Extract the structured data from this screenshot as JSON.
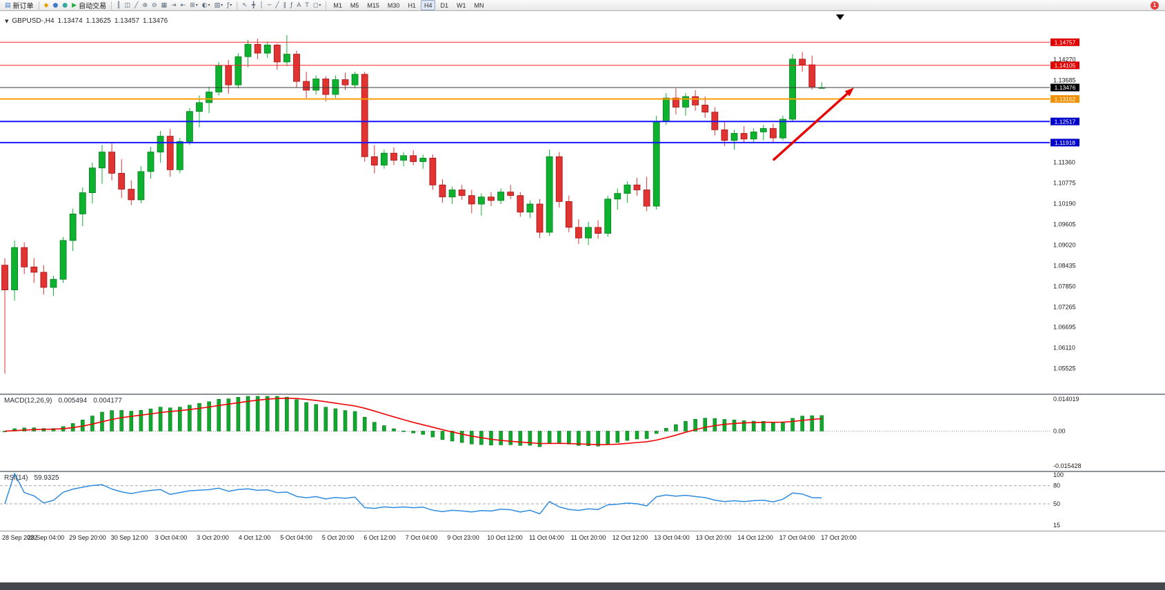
{
  "toolbar": {
    "new_order_button": {
      "name": "new-order-button",
      "glyph": "▤",
      "glyph_color": "#3f77c9",
      "label": "新订单"
    },
    "system_icons": [
      {
        "name": "alerts-icon",
        "glyph": "◆",
        "color": "#e0a400"
      },
      {
        "name": "community-icon",
        "glyph": "●",
        "color": "#3f77c9"
      },
      {
        "name": "market-icon",
        "glyph": "●",
        "color": "#2fa8a0"
      }
    ],
    "autotrade_button": {
      "name": "autotrade-button",
      "glyph": "▶",
      "glyph_color": "#1fae3d",
      "label": "自动交易"
    },
    "chart_buttons": [
      {
        "name": "bar-chart-icon",
        "glyph": "║"
      },
      {
        "name": "candlestick-chart-icon",
        "glyph": "◫"
      },
      {
        "name": "line-chart-icon",
        "glyph": "╱"
      },
      {
        "name": "zoom-in-icon",
        "glyph": "⊕"
      },
      {
        "name": "zoom-out-icon",
        "glyph": "⊖"
      },
      {
        "name": "tile-windows-icon",
        "glyph": "▦"
      },
      {
        "name": "auto-scroll-icon",
        "glyph": "⇥"
      },
      {
        "name": "chart-shift-icon",
        "glyph": "⇤"
      },
      {
        "name": "new-chart-icon",
        "glyph": "⊞",
        "dropdown": true
      },
      {
        "name": "periods-icon",
        "glyph": "◐",
        "dropdown": true
      },
      {
        "name": "templates-icon",
        "glyph": "▧",
        "dropdown": true
      },
      {
        "name": "indicators-icon",
        "glyph": "ƒ",
        "dropdown": true
      }
    ],
    "drawing_buttons": [
      {
        "name": "cursor-icon",
        "glyph": "↖"
      },
      {
        "name": "crosshair-icon",
        "glyph": "╋"
      },
      {
        "name": "vertical-line-icon",
        "glyph": "│"
      },
      {
        "name": "horizontal-line-icon",
        "glyph": "─"
      },
      {
        "name": "trendline-icon",
        "glyph": "╱"
      },
      {
        "name": "channel-icon",
        "glyph": "∥"
      },
      {
        "name": "fibonacci-icon",
        "glyph": "ƒ"
      },
      {
        "name": "text-icon",
        "glyph": "A"
      },
      {
        "name": "label-icon",
        "glyph": "T"
      },
      {
        "name": "shapes-icon",
        "glyph": "◻",
        "dropdown": true
      }
    ],
    "timeframes": {
      "options": [
        "M1",
        "M5",
        "M15",
        "M30",
        "H1",
        "H4",
        "D1",
        "W1",
        "MN"
      ],
      "active": "H4"
    },
    "notification": {
      "count": "1",
      "color": "#e23c3c"
    }
  },
  "quote": {
    "collapse_marker": "▼",
    "symbol": "GBPUSD-,H4",
    "open": "1.13474",
    "high": "1.13625",
    "low": "1.13457",
    "close": "1.13476"
  },
  "chart_data": [
    {
      "type": "candlestick",
      "symbol": "GBPUSD-",
      "timeframe": "H4",
      "bull_color": "#0db32f",
      "bull_stroke": "#077a1e",
      "bear_color": "#e23333",
      "bear_stroke": "#a01414",
      "y_range": {
        "min": 1.04837,
        "max": 1.15524
      },
      "y_ticks": [
        "1.14270",
        "1.13685",
        "1.11360",
        "1.10775",
        "1.10190",
        "1.09605",
        "1.09020",
        "1.08435",
        "1.07850",
        "1.07265",
        "1.06695",
        "1.06110",
        "1.05525"
      ],
      "levels": [
        {
          "value": 1.14757,
          "label": "1.14757",
          "color": "#ff2020",
          "line_width": 1,
          "badge_color": "#e00000"
        },
        {
          "value": 1.14105,
          "label": "1.14105",
          "color": "#ff2020",
          "line_width": 1,
          "badge_color": "#e00000"
        },
        {
          "value": 1.13152,
          "label": "1.13152",
          "color": "#ff9c00",
          "line_width": 2,
          "badge_color": "#f09000"
        },
        {
          "value": 1.12517,
          "label": "1.12517",
          "color": "#1414ff",
          "line_width": 2,
          "badge_color": "#0000cc"
        },
        {
          "value": 1.11918,
          "label": "1.11918",
          "color": "#1414ff",
          "line_width": 2,
          "badge_color": "#0000cc"
        }
      ],
      "current_price": {
        "value": 1.13476,
        "label": "1.13476",
        "color": "#3a3a3a",
        "badge_color": "#000000"
      },
      "arrow": {
        "color": "#e60000",
        "from_bar": 79,
        "from_price": 1.1142,
        "to_bar": 87.3,
        "to_price": 1.1347
      },
      "end_marker": "▼",
      "x_labels": [
        "28 Sep 2022",
        "29 Sep 04:00",
        "29 Sep 20:00",
        "30 Sep 12:00",
        "3 Oct 04:00",
        "3 Oct 20:00",
        "4 Oct 12:00",
        "5 Oct 04:00",
        "5 Oct 20:00",
        "6 Oct 12:00",
        "7 Oct 04:00",
        "9 Oct 23:00",
        "10 Oct 12:00",
        "11 Oct 04:00",
        "11 Oct 20:00",
        "12 Oct 12:00",
        "13 Oct 04:00",
        "13 Oct 20:00",
        "14 Oct 12:00",
        "17 Oct 04:00",
        "17 Oct 20:00"
      ],
      "candles": [
        [
          1.0845,
          1.0865,
          1.0538,
          1.0775
        ],
        [
          1.0775,
          1.0915,
          1.0745,
          1.0895
        ],
        [
          1.0895,
          1.091,
          1.082,
          1.084
        ],
        [
          1.084,
          1.0865,
          1.0795,
          1.0825
        ],
        [
          1.0825,
          1.0845,
          1.0762,
          1.0782
        ],
        [
          1.0782,
          1.0815,
          1.0758,
          1.0805
        ],
        [
          1.0805,
          1.0925,
          1.0795,
          1.0915
        ],
        [
          1.0915,
          1.1005,
          1.0885,
          1.099
        ],
        [
          1.099,
          1.1065,
          1.0955,
          1.105
        ],
        [
          1.105,
          1.1135,
          1.102,
          1.112
        ],
        [
          1.112,
          1.1185,
          1.1075,
          1.1165
        ],
        [
          1.1165,
          1.119,
          1.1085,
          1.1105
        ],
        [
          1.1105,
          1.1145,
          1.1035,
          1.106
        ],
        [
          1.106,
          1.1085,
          1.1015,
          1.103
        ],
        [
          1.103,
          1.1125,
          1.102,
          1.111
        ],
        [
          1.111,
          1.118,
          1.109,
          1.1165
        ],
        [
          1.1165,
          1.1225,
          1.1135,
          1.121
        ],
        [
          1.121,
          1.123,
          1.1095,
          1.1115
        ],
        [
          1.1115,
          1.1205,
          1.1105,
          1.1195
        ],
        [
          1.1195,
          1.129,
          1.1185,
          1.128
        ],
        [
          1.128,
          1.1325,
          1.1235,
          1.1305
        ],
        [
          1.1305,
          1.135,
          1.1275,
          1.1335
        ],
        [
          1.1335,
          1.142,
          1.1325,
          1.141
        ],
        [
          1.141,
          1.1425,
          1.133,
          1.1355
        ],
        [
          1.1355,
          1.1445,
          1.1345,
          1.1435
        ],
        [
          1.1435,
          1.1482,
          1.1405,
          1.147
        ],
        [
          1.147,
          1.1486,
          1.1428,
          1.1445
        ],
        [
          1.1445,
          1.1478,
          1.1432,
          1.1468
        ],
        [
          1.1468,
          1.1472,
          1.1398,
          1.142
        ],
        [
          1.142,
          1.1496,
          1.1408,
          1.1442
        ],
        [
          1.1442,
          1.1452,
          1.1348,
          1.1365
        ],
        [
          1.1365,
          1.1392,
          1.1318,
          1.134
        ],
        [
          1.134,
          1.1382,
          1.1328,
          1.1372
        ],
        [
          1.1372,
          1.138,
          1.1308,
          1.1328
        ],
        [
          1.1328,
          1.1382,
          1.1318,
          1.137
        ],
        [
          1.137,
          1.139,
          1.134,
          1.1355
        ],
        [
          1.1355,
          1.1392,
          1.1345,
          1.1385
        ],
        [
          1.1385,
          1.1392,
          1.1138,
          1.1152
        ],
        [
          1.1152,
          1.1185,
          1.1105,
          1.1128
        ],
        [
          1.1128,
          1.1172,
          1.1118,
          1.1162
        ],
        [
          1.1162,
          1.1178,
          1.1128,
          1.1142
        ],
        [
          1.1142,
          1.1165,
          1.1125,
          1.1155
        ],
        [
          1.1155,
          1.117,
          1.1128,
          1.1138
        ],
        [
          1.1138,
          1.1158,
          1.1118,
          1.1148
        ],
        [
          1.1148,
          1.1158,
          1.1058,
          1.1072
        ],
        [
          1.1072,
          1.1088,
          1.1022,
          1.1038
        ],
        [
          1.1038,
          1.1068,
          1.1018,
          1.1058
        ],
        [
          1.1058,
          1.1072,
          1.103,
          1.1042
        ],
        [
          1.1042,
          1.1058,
          1.0992,
          1.1018
        ],
        [
          1.1018,
          1.1048,
          1.0985,
          1.1038
        ],
        [
          1.1038,
          1.1052,
          1.1012,
          1.1028
        ],
        [
          1.1028,
          1.1062,
          1.1018,
          1.1052
        ],
        [
          1.1052,
          1.1072,
          1.1032,
          1.1042
        ],
        [
          1.1042,
          1.1052,
          1.0982,
          1.0995
        ],
        [
          1.0995,
          1.1028,
          1.0978,
          1.1018
        ],
        [
          1.1018,
          1.1032,
          1.0922,
          1.0938
        ],
        [
          1.0938,
          1.1172,
          1.0928,
          1.1152
        ],
        [
          1.1152,
          1.1165,
          1.1008,
          1.1025
        ],
        [
          1.1025,
          1.1042,
          1.0938,
          1.0952
        ],
        [
          1.0952,
          1.0975,
          1.0905,
          1.0922
        ],
        [
          1.0922,
          1.0968,
          1.0902,
          1.0952
        ],
        [
          1.0952,
          1.0972,
          1.092,
          1.0935
        ],
        [
          1.0935,
          1.1042,
          1.0925,
          1.1032
        ],
        [
          1.1032,
          1.1062,
          1.1002,
          1.1048
        ],
        [
          1.1048,
          1.1082,
          1.1022,
          1.1072
        ],
        [
          1.1072,
          1.1092,
          1.1042,
          1.1058
        ],
        [
          1.1058,
          1.1095,
          1.0998,
          1.1012
        ],
        [
          1.1012,
          1.1268,
          1.1002,
          1.1252
        ],
        [
          1.1252,
          1.1332,
          1.1242,
          1.1318
        ],
        [
          1.1318,
          1.1345,
          1.1272,
          1.1292
        ],
        [
          1.1292,
          1.1332,
          1.1268,
          1.1322
        ],
        [
          1.1322,
          1.134,
          1.1282,
          1.1298
        ],
        [
          1.1298,
          1.1322,
          1.1262,
          1.1278
        ],
        [
          1.1278,
          1.1292,
          1.1212,
          1.1228
        ],
        [
          1.1228,
          1.1252,
          1.1182,
          1.1198
        ],
        [
          1.1198,
          1.1228,
          1.1172,
          1.1218
        ],
        [
          1.1218,
          1.1238,
          1.1192,
          1.1202
        ],
        [
          1.1202,
          1.1232,
          1.1192,
          1.1222
        ],
        [
          1.1222,
          1.1242,
          1.1198,
          1.1232
        ],
        [
          1.1232,
          1.1245,
          1.1192,
          1.1205
        ],
        [
          1.1205,
          1.1268,
          1.1198,
          1.1258
        ],
        [
          1.1258,
          1.1442,
          1.1252,
          1.1428
        ],
        [
          1.1428,
          1.1448,
          1.1392,
          1.1412
        ],
        [
          1.1412,
          1.1438,
          1.1342,
          1.135
        ],
        [
          1.13474,
          1.13625,
          1.13457,
          1.13476
        ]
      ]
    },
    {
      "type": "macd",
      "title": "MACD(12,26,9)",
      "value_main": "0.005494",
      "value_signal": "0.004177",
      "fast": 12,
      "slow": 26,
      "signal": 9,
      "y_max": 0.014019,
      "y_min": -0.015428,
      "y_ticks": [
        {
          "label": "0.014019",
          "value": 0.014019
        },
        {
          "label": "0.00",
          "value": 0
        },
        {
          "label": "-0.015428",
          "value": -0.015428
        }
      ],
      "histogram_color": "#12a72e",
      "histogram_stroke": "#0b7a1f",
      "signal_color": "#f00000"
    },
    {
      "type": "rsi",
      "title": "RSI(14)",
      "value": "59.9325",
      "period": 14,
      "y_max": 100,
      "y_min": 8,
      "levels": [
        80,
        50
      ],
      "y_ticks": [
        {
          "label": "100",
          "value": 100
        },
        {
          "label": "80",
          "value": 80
        },
        {
          "label": "50",
          "value": 50
        },
        {
          "label": "15",
          "value": 15
        }
      ],
      "line_color": "#2f8be0"
    }
  ]
}
